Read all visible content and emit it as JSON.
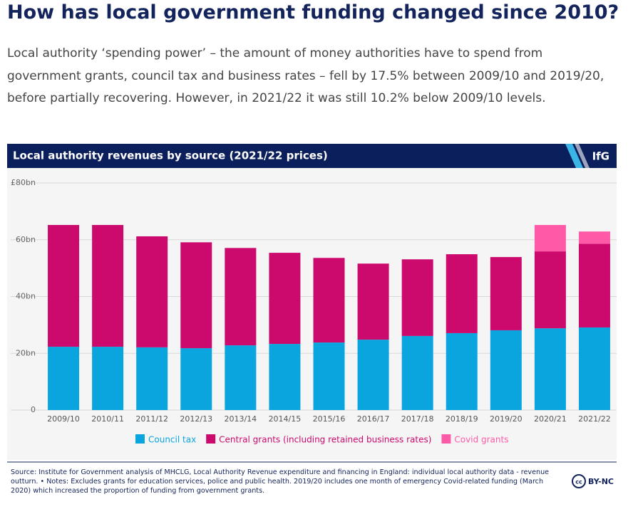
{
  "heading": "How has local government funding changed since 2010?",
  "intro": "Local authority ‘spending power’ – the amount of money authorities have to spend from government grants, council tax and business rates – fell by 17.5% between 2009/10 and 2019/20, before partially recovering. However, in 2021/22 it was still 10.2% below 2009/10 levels.",
  "logo": "IfG",
  "source": "Source: Institute for Government analysis of MHCLG, Local Authority Revenue expenditure and financing in England: individual local authority data - revenue outturn. • Notes: Excludes grants for education services, police and public health. 2019/20 includes one month of emergency Covid-related funding (March 2020) which increased the proportion of funding from government grants.",
  "license": "BY-NC",
  "chart_data": {
    "type": "stacked-bar",
    "title": "Local authority revenues by source (2021/22 prices)",
    "categories": [
      "2009/10",
      "2010/11",
      "2011/12",
      "2012/13",
      "2013/14",
      "2014/15",
      "2015/16",
      "2016/17",
      "2017/18",
      "2018/19",
      "2019/20",
      "2020/21",
      "2021/22"
    ],
    "series": [
      {
        "name": "Council tax",
        "color": "#0aa5df",
        "values": [
          22.3,
          22.3,
          22.1,
          21.8,
          22.8,
          23.3,
          23.8,
          24.8,
          26.1,
          27.1,
          28.1,
          28.8,
          29.1
        ]
      },
      {
        "name": "Central grants (including retained business rates)",
        "color": "#cc0a6e",
        "values": [
          42.9,
          42.9,
          39.1,
          37.3,
          34.3,
          32.1,
          29.8,
          26.8,
          27.0,
          27.8,
          25.8,
          27.1,
          29.5
        ]
      },
      {
        "name": "Covid grants",
        "color": "#ff5aa8",
        "values": [
          null,
          null,
          null,
          null,
          null,
          null,
          null,
          null,
          null,
          null,
          null,
          9.3,
          4.3
        ]
      }
    ],
    "ylim": [
      0,
      80
    ],
    "yticks": [
      0,
      {
        "value": 20,
        "label": "20bn"
      },
      {
        "value": 40,
        "label": "40bn"
      },
      {
        "value": 60,
        "label": "60bn"
      },
      {
        "value": 80,
        "label": "£80bn"
      }
    ],
    "grid": true
  }
}
